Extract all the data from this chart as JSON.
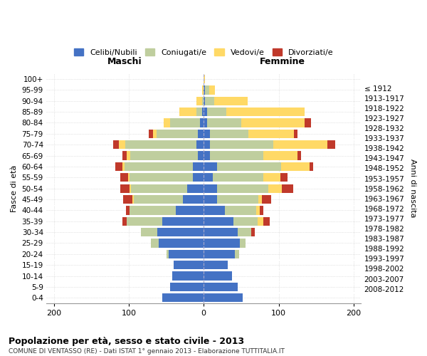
{
  "age_groups": [
    "0-4",
    "5-9",
    "10-14",
    "15-19",
    "20-24",
    "25-29",
    "30-34",
    "35-39",
    "40-44",
    "45-49",
    "50-54",
    "55-59",
    "60-64",
    "65-69",
    "70-74",
    "75-79",
    "80-84",
    "85-89",
    "90-94",
    "95-99",
    "100+"
  ],
  "birth_years": [
    "2008-2012",
    "2003-2007",
    "1998-2002",
    "1993-1997",
    "1988-1992",
    "1983-1987",
    "1978-1982",
    "1973-1977",
    "1968-1972",
    "1963-1967",
    "1958-1962",
    "1953-1957",
    "1948-1952",
    "1943-1947",
    "1938-1942",
    "1933-1937",
    "1928-1932",
    "1923-1927",
    "1918-1922",
    "1913-1917",
    "≤ 1912"
  ],
  "male": {
    "celibi": [
      55,
      45,
      42,
      40,
      47,
      60,
      62,
      55,
      37,
      28,
      22,
      14,
      14,
      8,
      10,
      8,
      5,
      2,
      0,
      0,
      0
    ],
    "coniugati": [
      0,
      0,
      0,
      0,
      3,
      10,
      22,
      48,
      62,
      65,
      75,
      85,
      92,
      90,
      95,
      55,
      40,
      8,
      2,
      0,
      0
    ],
    "vedovi": [
      0,
      0,
      0,
      0,
      0,
      0,
      0,
      0,
      0,
      2,
      2,
      2,
      2,
      5,
      8,
      5,
      8,
      22,
      8,
      2,
      0
    ],
    "divorziati": [
      0,
      0,
      0,
      0,
      0,
      0,
      0,
      5,
      5,
      12,
      12,
      10,
      10,
      5,
      8,
      5,
      0,
      0,
      0,
      0,
      0
    ]
  },
  "female": {
    "nubili": [
      52,
      45,
      38,
      32,
      42,
      48,
      45,
      40,
      28,
      18,
      18,
      12,
      18,
      8,
      8,
      8,
      5,
      5,
      2,
      2,
      0
    ],
    "coniugate": [
      0,
      0,
      0,
      0,
      5,
      8,
      18,
      32,
      42,
      55,
      68,
      68,
      85,
      72,
      85,
      52,
      45,
      25,
      12,
      5,
      0
    ],
    "vedove": [
      0,
      0,
      0,
      0,
      0,
      0,
      0,
      8,
      5,
      5,
      18,
      22,
      38,
      45,
      72,
      60,
      85,
      105,
      45,
      8,
      2
    ],
    "divorziate": [
      0,
      0,
      0,
      0,
      0,
      0,
      5,
      8,
      5,
      12,
      15,
      10,
      5,
      5,
      10,
      5,
      8,
      0,
      0,
      0,
      0
    ]
  },
  "colors": {
    "celibi": "#4472C4",
    "coniugati": "#BFCE9E",
    "vedovi": "#FFD966",
    "divorziati": "#C0392B"
  },
  "legend_labels": [
    "Celibi/Nubili",
    "Coniugati/e",
    "Vedovi/e",
    "Divorziati/e"
  ],
  "title": "Popolazione per età, sesso e stato civile - 2013",
  "subtitle": "COMUNE DI VENTASSO (RE) - Dati ISTAT 1° gennaio 2013 - Elaborazione TUTTITALIA.IT",
  "xlabel_left": "Maschi",
  "xlabel_right": "Femmine",
  "ylabel_left": "Fasce di età",
  "ylabel_right": "Anni di nascita",
  "xlim": 210,
  "background_color": "#ffffff",
  "grid_color": "#cccccc"
}
